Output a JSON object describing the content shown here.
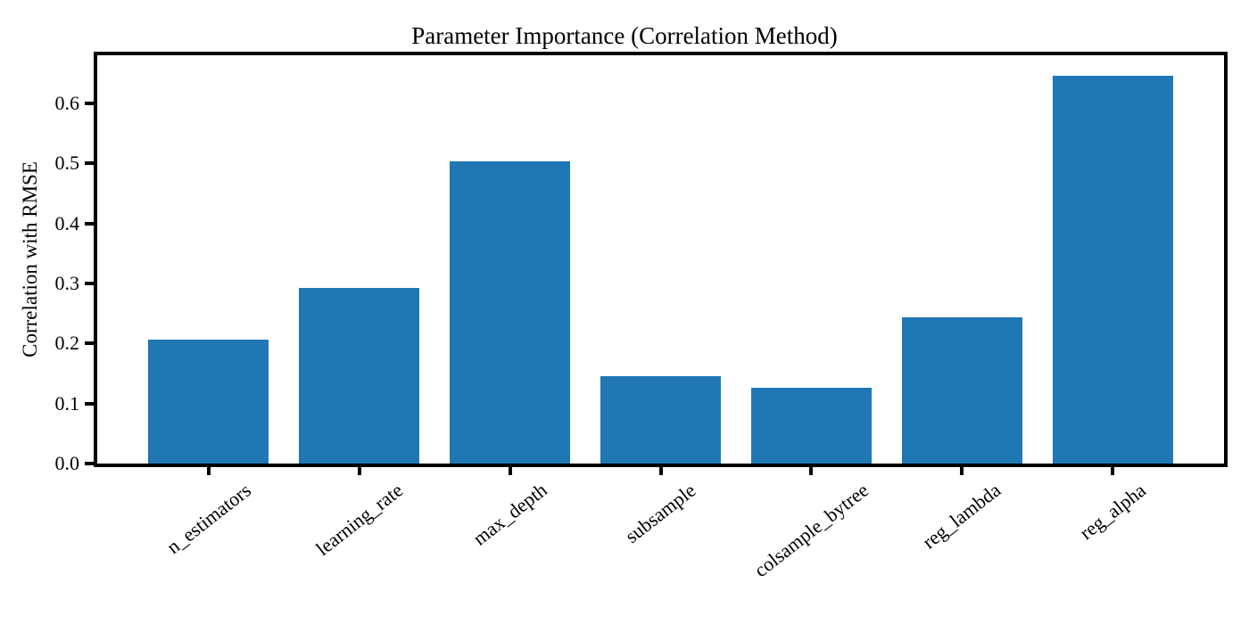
{
  "figure": {
    "background": "#ffffff"
  },
  "chart_data": {
    "type": "bar",
    "title": "Parameter Importance (Correlation Method)",
    "ylabel": "Correlation with RMSE",
    "xlabel": "",
    "categories": [
      "n_estimators",
      "learning_rate",
      "max_depth",
      "subsample",
      "colsample_bytree",
      "reg_lambda",
      "reg_alpha"
    ],
    "values": [
      0.207,
      0.292,
      0.503,
      0.145,
      0.126,
      0.244,
      0.646
    ],
    "ylim": [
      0,
      0.68
    ],
    "y_ticks": [
      0.0,
      0.1,
      0.2,
      0.3,
      0.4,
      0.5,
      0.6
    ],
    "y_tick_labels": [
      "0.0",
      "0.1",
      "0.2",
      "0.3",
      "0.4",
      "0.5",
      "0.6"
    ],
    "x_tick_rotation_deg": 38,
    "grid": false,
    "legend": "none",
    "bar_color": "#1f77b4",
    "axis_color": "#000000"
  }
}
